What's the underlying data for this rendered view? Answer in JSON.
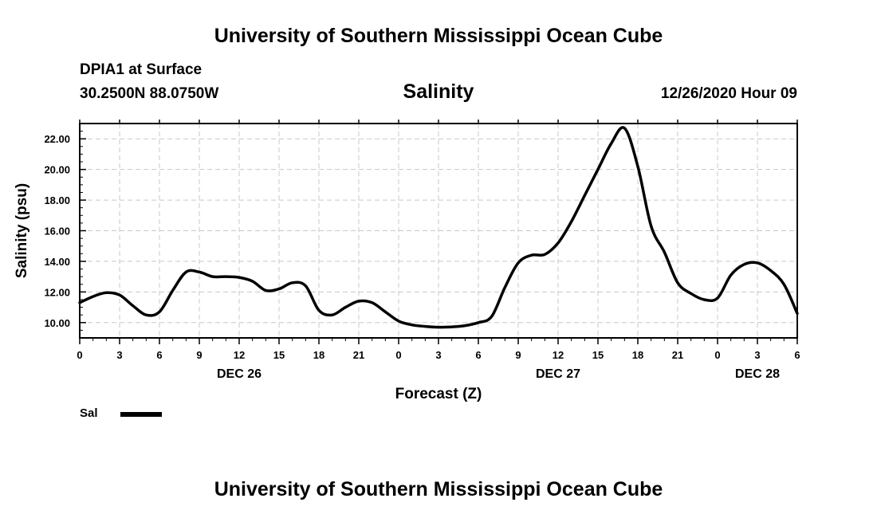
{
  "header": {
    "title": "University of Southern Mississippi Ocean Cube",
    "station": "DPIA1 at Surface",
    "coords": "30.2500N 88.0750W",
    "datetime": "12/26/2020 Hour 09"
  },
  "footer": {
    "title": "University of Southern Mississippi Ocean Cube"
  },
  "chart_data": {
    "type": "line",
    "title": "Salinity",
    "xlabel": "Forecast (Z)",
    "ylabel": "Salinity (psu)",
    "ylim": [
      9.0,
      23.0
    ],
    "yticks": [
      "10.00",
      "12.00",
      "14.00",
      "16.00",
      "18.00",
      "20.00",
      "22.00"
    ],
    "grid": true,
    "x_hours_range": [
      0,
      54
    ],
    "xtick_labels": [
      "0",
      "3",
      "6",
      "9",
      "12",
      "15",
      "18",
      "21",
      "0",
      "3",
      "6",
      "9",
      "12",
      "15",
      "18",
      "21",
      "0",
      "3",
      "6"
    ],
    "date_labels": [
      {
        "label": "DEC 26",
        "hour": 12
      },
      {
        "label": "DEC 27",
        "hour": 36
      },
      {
        "label": "DEC 28",
        "hour": 51
      }
    ],
    "series": [
      {
        "name": "Sal",
        "color": "#000000",
        "x": [
          0,
          1,
          2,
          3,
          4,
          5,
          6,
          7,
          8,
          9,
          10,
          11,
          12,
          13,
          14,
          15,
          16,
          17,
          18,
          19,
          20,
          21,
          22,
          23,
          24,
          25,
          26,
          27,
          28,
          29,
          30,
          31,
          32,
          33,
          34,
          35,
          36,
          37,
          38,
          39,
          40,
          41,
          42,
          43,
          44,
          45,
          46,
          47,
          48,
          49,
          50,
          51,
          52,
          53,
          54
        ],
        "values": [
          11.3,
          11.7,
          11.95,
          11.8,
          11.1,
          10.5,
          10.7,
          12.1,
          13.3,
          13.3,
          13.0,
          13.0,
          12.95,
          12.7,
          12.1,
          12.2,
          12.6,
          12.4,
          10.8,
          10.5,
          11.0,
          11.4,
          11.3,
          10.7,
          10.1,
          9.85,
          9.75,
          9.7,
          9.72,
          9.8,
          10.0,
          10.4,
          12.3,
          13.9,
          14.4,
          14.45,
          15.2,
          16.6,
          18.3,
          20.0,
          21.7,
          22.7,
          20.2,
          16.3,
          14.6,
          12.6,
          11.9,
          11.5,
          11.6,
          13.1,
          13.8,
          13.9,
          13.4,
          12.5,
          10.6
        ]
      }
    ],
    "legend": {
      "position": "bottom-left",
      "label": "Sal"
    }
  }
}
